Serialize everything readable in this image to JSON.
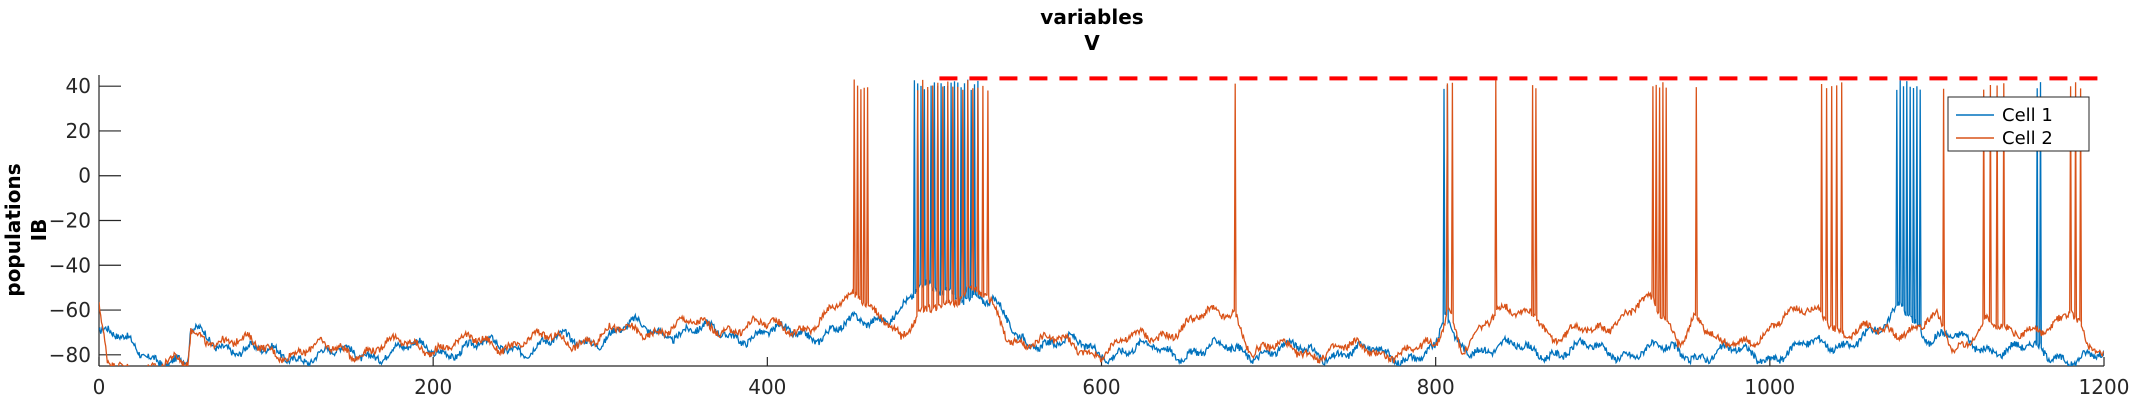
{
  "chart_data": {
    "type": "line",
    "title": [
      "variables",
      "V"
    ],
    "ylabel": [
      "populations",
      "IB"
    ],
    "xlabel": "",
    "xlim": [
      0,
      1200
    ],
    "ylim": [
      -85,
      45
    ],
    "xticks": [
      0,
      200,
      400,
      600,
      800,
      1000,
      1200
    ],
    "yticks": [
      -80,
      -60,
      -40,
      -20,
      0,
      20,
      40
    ],
    "grid": false,
    "legend_position": "top-right",
    "series": [
      {
        "name": "Cell 1",
        "color": "#0072bd",
        "baseline": [
          [
            0,
            -70
          ],
          [
            50,
            -85
          ],
          [
            53,
            -85
          ],
          [
            55,
            -70
          ],
          [
            70,
            -74
          ],
          [
            100,
            -80
          ],
          [
            140,
            -80
          ],
          [
            180,
            -78
          ],
          [
            220,
            -77
          ],
          [
            260,
            -76
          ],
          [
            300,
            -72
          ],
          [
            320,
            -68
          ],
          [
            360,
            -70
          ],
          [
            400,
            -71
          ],
          [
            430,
            -70
          ],
          [
            460,
            -66
          ],
          [
            480,
            -58
          ],
          [
            490,
            -52
          ],
          [
            510,
            -52
          ],
          [
            520,
            -52
          ],
          [
            535,
            -58
          ],
          [
            550,
            -72
          ],
          [
            600,
            -78
          ],
          [
            700,
            -78
          ],
          [
            800,
            -80
          ],
          [
            806,
            -62
          ],
          [
            812,
            -75
          ],
          [
            850,
            -78
          ],
          [
            900,
            -78
          ],
          [
            1000,
            -80
          ],
          [
            1070,
            -70
          ],
          [
            1078,
            -55
          ],
          [
            1095,
            -72
          ],
          [
            1150,
            -78
          ],
          [
            1200,
            -82
          ]
        ],
        "spikes": [
          488,
          490,
          492,
          494,
          496,
          498,
          500,
          502,
          504,
          506,
          508,
          510,
          512,
          514,
          516,
          518,
          520,
          522,
          524,
          526,
          805,
          807,
          1076,
          1078,
          1080,
          1082,
          1084,
          1086,
          1088,
          1090,
          1160,
          1162
        ]
      },
      {
        "name": "Cell 2",
        "color": "#d95319",
        "baseline": [
          [
            0,
            -62
          ],
          [
            5,
            -85
          ],
          [
            50,
            -85
          ],
          [
            53,
            -85
          ],
          [
            55,
            -70
          ],
          [
            70,
            -72
          ],
          [
            100,
            -78
          ],
          [
            140,
            -78
          ],
          [
            180,
            -76
          ],
          [
            220,
            -75
          ],
          [
            260,
            -74
          ],
          [
            300,
            -72
          ],
          [
            330,
            -68
          ],
          [
            370,
            -67
          ],
          [
            400,
            -68
          ],
          [
            430,
            -66
          ],
          [
            445,
            -58
          ],
          [
            455,
            -52
          ],
          [
            470,
            -62
          ],
          [
            480,
            -75
          ],
          [
            500,
            -56
          ],
          [
            520,
            -52
          ],
          [
            530,
            -55
          ],
          [
            545,
            -72
          ],
          [
            600,
            -78
          ],
          [
            680,
            -60
          ],
          [
            690,
            -78
          ],
          [
            800,
            -78
          ],
          [
            808,
            -58
          ],
          [
            815,
            -75
          ],
          [
            840,
            -62
          ],
          [
            860,
            -58
          ],
          [
            870,
            -75
          ],
          [
            930,
            -57
          ],
          [
            945,
            -72
          ],
          [
            955,
            -62
          ],
          [
            970,
            -78
          ],
          [
            1030,
            -58
          ],
          [
            1045,
            -72
          ],
          [
            1100,
            -65
          ],
          [
            1110,
            -80
          ],
          [
            1130,
            -62
          ],
          [
            1145,
            -74
          ],
          [
            1180,
            -60
          ],
          [
            1190,
            -78
          ],
          [
            1200,
            -82
          ]
        ],
        "spikes": [
          452,
          454,
          456,
          458,
          460,
          490,
          493,
          496,
          499,
          502,
          505,
          508,
          511,
          514,
          517,
          520,
          523,
          526,
          529,
          532,
          680,
          807,
          810,
          836,
          858,
          860,
          930,
          932,
          934,
          936,
          938,
          956,
          1031,
          1034,
          1037,
          1040,
          1043,
          1104,
          1128,
          1132,
          1136,
          1140,
          1180,
          1183,
          1186
        ]
      }
    ],
    "annotations": [
      {
        "type": "dashed-line",
        "color": "#ff0000",
        "x": [
          503,
          1200
        ],
        "y": 43.5
      }
    ]
  }
}
